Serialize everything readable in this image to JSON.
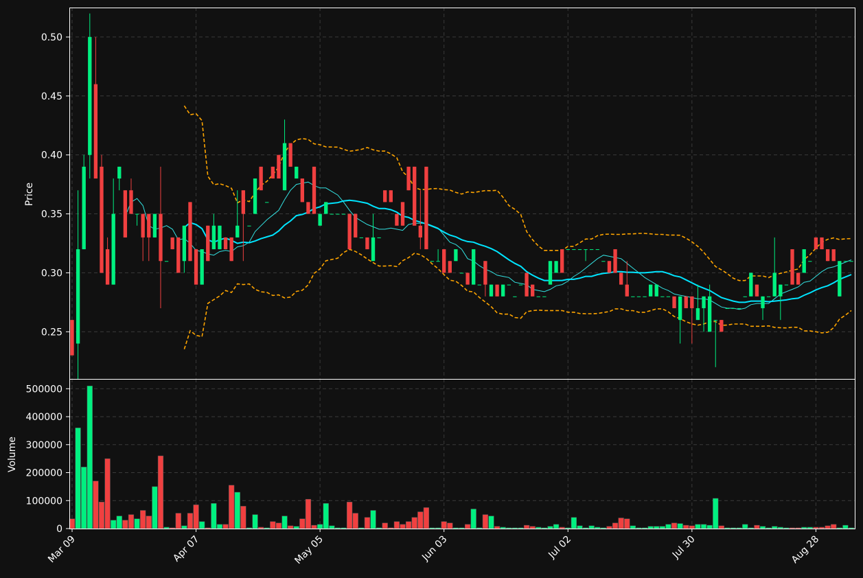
{
  "colors": {
    "background": "#111111",
    "up": "#00f080",
    "down": "#f04040",
    "sma_fast": "#33e0e0",
    "sma_slow": "#00e5ff",
    "bollinger": "#ffa500",
    "grid": "#3a3a3a",
    "axis": "#ffffff"
  },
  "chart_data": {
    "type": "candlestick",
    "price_ylabel": "Price",
    "volume_ylabel": "Volume",
    "price_ylim": [
      0.21,
      0.525
    ],
    "price_ticks": [
      "0.25",
      "0.30",
      "0.35",
      "0.40",
      "0.45",
      "0.50"
    ],
    "volume_ylim": [
      0,
      535000
    ],
    "volume_ticks": [
      "0",
      "100000",
      "200000",
      "300000",
      "400000",
      "500000"
    ],
    "x_tick_labels": [
      {
        "label": "Mar 09",
        "index": 0
      },
      {
        "label": "Apr 07",
        "index": 21
      },
      {
        "label": "May 05",
        "index": 42
      },
      {
        "label": "Jun 03",
        "index": 63
      },
      {
        "label": "Jul 02",
        "index": 84
      },
      {
        "label": "Jul 30",
        "index": 105
      },
      {
        "label": "Aug 28",
        "index": 126
      }
    ],
    "grid": true,
    "candles": [
      [
        0.26,
        0.26,
        0.23,
        0.23,
        35000
      ],
      [
        0.24,
        0.37,
        0.21,
        0.32,
        360000
      ],
      [
        0.32,
        0.4,
        0.32,
        0.39,
        220000
      ],
      [
        0.4,
        0.52,
        0.38,
        0.5,
        510000
      ],
      [
        0.46,
        0.5,
        0.38,
        0.38,
        170000
      ],
      [
        0.39,
        0.4,
        0.3,
        0.3,
        95000
      ],
      [
        0.32,
        0.33,
        0.29,
        0.29,
        250000
      ],
      [
        0.29,
        0.38,
        0.29,
        0.35,
        30000
      ],
      [
        0.38,
        0.39,
        0.37,
        0.39,
        45000
      ],
      [
        0.37,
        0.37,
        0.33,
        0.33,
        30000
      ],
      [
        0.37,
        0.38,
        0.35,
        0.35,
        50000
      ],
      [
        0.35,
        0.35,
        0.34,
        0.35,
        35000
      ],
      [
        0.35,
        0.35,
        0.31,
        0.33,
        65000
      ],
      [
        0.35,
        0.35,
        0.31,
        0.33,
        45000
      ],
      [
        0.33,
        0.35,
        0.33,
        0.35,
        150000
      ],
      [
        0.35,
        0.39,
        0.27,
        0.31,
        260000
      ],
      [
        0.31,
        0.31,
        0.31,
        0.31,
        5000
      ],
      [
        0.33,
        0.33,
        0.32,
        0.32,
        3000
      ],
      [
        0.33,
        0.33,
        0.3,
        0.3,
        55000
      ],
      [
        0.31,
        0.34,
        0.3,
        0.34,
        10000
      ],
      [
        0.36,
        0.36,
        0.31,
        0.31,
        55000
      ],
      [
        0.32,
        0.32,
        0.29,
        0.29,
        85000
      ],
      [
        0.29,
        0.32,
        0.29,
        0.32,
        25000
      ],
      [
        0.34,
        0.34,
        0.31,
        0.31,
        3000
      ],
      [
        0.32,
        0.35,
        0.32,
        0.34,
        90000
      ],
      [
        0.32,
        0.34,
        0.32,
        0.34,
        15000
      ],
      [
        0.33,
        0.33,
        0.32,
        0.32,
        15000
      ],
      [
        0.33,
        0.33,
        0.31,
        0.31,
        155000
      ],
      [
        0.33,
        0.37,
        0.33,
        0.34,
        130000
      ],
      [
        0.37,
        0.37,
        0.31,
        0.35,
        80000
      ],
      [
        0.34,
        0.34,
        0.34,
        0.34,
        3000
      ],
      [
        0.35,
        0.38,
        0.35,
        0.38,
        50000
      ],
      [
        0.39,
        0.39,
        0.37,
        0.37,
        5000
      ],
      [
        0.36,
        0.36,
        0.36,
        0.36,
        3000
      ],
      [
        0.39,
        0.39,
        0.38,
        0.38,
        25000
      ],
      [
        0.4,
        0.4,
        0.38,
        0.38,
        20000
      ],
      [
        0.37,
        0.43,
        0.37,
        0.41,
        45000
      ],
      [
        0.41,
        0.41,
        0.39,
        0.39,
        10000
      ],
      [
        0.38,
        0.39,
        0.38,
        0.39,
        8000
      ],
      [
        0.38,
        0.38,
        0.36,
        0.36,
        35000
      ],
      [
        0.36,
        0.36,
        0.35,
        0.35,
        105000
      ],
      [
        0.39,
        0.39,
        0.35,
        0.35,
        12000
      ],
      [
        0.34,
        0.35,
        0.34,
        0.35,
        15000
      ],
      [
        0.35,
        0.36,
        0.35,
        0.36,
        90000
      ],
      [
        0.35,
        0.35,
        0.35,
        0.35,
        10000
      ],
      [
        0.35,
        0.35,
        0.35,
        0.35,
        3000
      ],
      [
        0.35,
        0.35,
        0.35,
        0.35,
        3000
      ],
      [
        0.35,
        0.35,
        0.32,
        0.32,
        95000
      ],
      [
        0.35,
        0.35,
        0.33,
        0.33,
        55000
      ],
      [
        0.33,
        0.33,
        0.33,
        0.33,
        3000
      ],
      [
        0.33,
        0.33,
        0.32,
        0.32,
        40000
      ],
      [
        0.31,
        0.35,
        0.31,
        0.33,
        65000
      ],
      [
        0.33,
        0.33,
        0.33,
        0.33,
        3000
      ],
      [
        0.37,
        0.37,
        0.36,
        0.36,
        20000
      ],
      [
        0.37,
        0.37,
        0.36,
        0.36,
        3000
      ],
      [
        0.35,
        0.35,
        0.34,
        0.34,
        25000
      ],
      [
        0.36,
        0.36,
        0.34,
        0.34,
        15000
      ],
      [
        0.39,
        0.39,
        0.37,
        0.37,
        25000
      ],
      [
        0.39,
        0.39,
        0.34,
        0.34,
        40000
      ],
      [
        0.34,
        0.37,
        0.32,
        0.33,
        60000
      ],
      [
        0.39,
        0.39,
        0.32,
        0.32,
        75000
      ],
      [
        0.31,
        0.31,
        0.31,
        0.31,
        3000
      ],
      [
        0.31,
        0.32,
        0.31,
        0.31,
        3000
      ],
      [
        0.32,
        0.32,
        0.3,
        0.3,
        25000
      ],
      [
        0.31,
        0.31,
        0.3,
        0.3,
        20000
      ],
      [
        0.31,
        0.32,
        0.31,
        0.32,
        3000
      ],
      [
        0.3,
        0.3,
        0.3,
        0.3,
        3000
      ],
      [
        0.3,
        0.3,
        0.29,
        0.29,
        15000
      ],
      [
        0.29,
        0.32,
        0.29,
        0.32,
        70000
      ],
      [
        0.29,
        0.29,
        0.29,
        0.29,
        3000
      ],
      [
        0.31,
        0.31,
        0.28,
        0.29,
        50000
      ],
      [
        0.28,
        0.29,
        0.28,
        0.29,
        45000
      ],
      [
        0.29,
        0.29,
        0.28,
        0.28,
        8000
      ],
      [
        0.28,
        0.29,
        0.28,
        0.29,
        5000
      ],
      [
        0.29,
        0.29,
        0.29,
        0.29,
        3000
      ],
      [
        0.28,
        0.28,
        0.28,
        0.28,
        3000
      ],
      [
        0.29,
        0.29,
        0.29,
        0.29,
        3000
      ],
      [
        0.3,
        0.3,
        0.28,
        0.28,
        12000
      ],
      [
        0.29,
        0.29,
        0.28,
        0.28,
        8000
      ],
      [
        0.28,
        0.28,
        0.28,
        0.28,
        5000
      ],
      [
        0.28,
        0.28,
        0.28,
        0.28,
        3000
      ],
      [
        0.29,
        0.31,
        0.29,
        0.31,
        8000
      ],
      [
        0.3,
        0.31,
        0.3,
        0.31,
        15000
      ],
      [
        0.32,
        0.32,
        0.3,
        0.3,
        5000
      ],
      [
        0.32,
        0.32,
        0.32,
        0.32,
        3000
      ],
      [
        0.32,
        0.32,
        0.32,
        0.32,
        40000
      ],
      [
        0.32,
        0.32,
        0.32,
        0.32,
        10000
      ],
      [
        0.32,
        0.32,
        0.31,
        0.32,
        3000
      ],
      [
        0.32,
        0.32,
        0.32,
        0.32,
        10000
      ],
      [
        0.32,
        0.32,
        0.32,
        0.32,
        5000
      ],
      [
        0.31,
        0.31,
        0.31,
        0.31,
        3000
      ],
      [
        0.31,
        0.31,
        0.3,
        0.3,
        8000
      ],
      [
        0.32,
        0.32,
        0.3,
        0.3,
        20000
      ],
      [
        0.3,
        0.3,
        0.29,
        0.29,
        38000
      ],
      [
        0.29,
        0.31,
        0.28,
        0.28,
        35000
      ],
      [
        0.28,
        0.28,
        0.28,
        0.28,
        10000
      ],
      [
        0.28,
        0.28,
        0.28,
        0.28,
        3000
      ],
      [
        0.28,
        0.28,
        0.28,
        0.28,
        3000
      ],
      [
        0.28,
        0.29,
        0.28,
        0.29,
        8000
      ],
      [
        0.28,
        0.29,
        0.28,
        0.29,
        8000
      ],
      [
        0.28,
        0.28,
        0.28,
        0.28,
        8000
      ],
      [
        0.28,
        0.28,
        0.28,
        0.28,
        15000
      ],
      [
        0.28,
        0.28,
        0.27,
        0.27,
        20000
      ],
      [
        0.26,
        0.28,
        0.24,
        0.28,
        18000
      ],
      [
        0.28,
        0.28,
        0.27,
        0.27,
        12000
      ],
      [
        0.28,
        0.28,
        0.24,
        0.27,
        10000
      ],
      [
        0.26,
        0.29,
        0.26,
        0.27,
        15000
      ],
      [
        0.27,
        0.28,
        0.25,
        0.28,
        15000
      ],
      [
        0.25,
        0.29,
        0.25,
        0.28,
        12000
      ],
      [
        0.26,
        0.26,
        0.22,
        0.26,
        108000
      ],
      [
        0.26,
        0.26,
        0.25,
        0.25,
        10000
      ],
      [
        0.27,
        0.27,
        0.27,
        0.27,
        3000
      ],
      [
        0.27,
        0.27,
        0.27,
        0.27,
        3000
      ],
      [
        0.27,
        0.27,
        0.27,
        0.27,
        3000
      ],
      [
        0.28,
        0.28,
        0.28,
        0.28,
        15000
      ],
      [
        0.28,
        0.3,
        0.28,
        0.3,
        3000
      ],
      [
        0.29,
        0.29,
        0.28,
        0.28,
        12000
      ],
      [
        0.27,
        0.28,
        0.26,
        0.28,
        8000
      ],
      [
        0.28,
        0.28,
        0.28,
        0.28,
        3000
      ],
      [
        0.28,
        0.33,
        0.28,
        0.3,
        8000
      ],
      [
        0.28,
        0.29,
        0.26,
        0.29,
        5000
      ],
      [
        0.29,
        0.29,
        0.29,
        0.29,
        3000
      ],
      [
        0.32,
        0.32,
        0.29,
        0.29,
        3000
      ],
      [
        0.3,
        0.3,
        0.29,
        0.29,
        3000
      ],
      [
        0.3,
        0.32,
        0.3,
        0.32,
        5000
      ],
      [
        0.31,
        0.31,
        0.31,
        0.31,
        5000
      ],
      [
        0.33,
        0.33,
        0.32,
        0.32,
        5000
      ],
      [
        0.33,
        0.33,
        0.32,
        0.32,
        5000
      ],
      [
        0.32,
        0.32,
        0.31,
        0.31,
        10000
      ],
      [
        0.32,
        0.32,
        0.31,
        0.31,
        15000
      ],
      [
        0.28,
        0.31,
        0.28,
        0.31,
        3000
      ],
      [
        0.31,
        0.31,
        0.31,
        0.31,
        12000
      ],
      [
        0.31,
        0.31,
        0.31,
        0.31,
        3000
      ]
    ]
  }
}
